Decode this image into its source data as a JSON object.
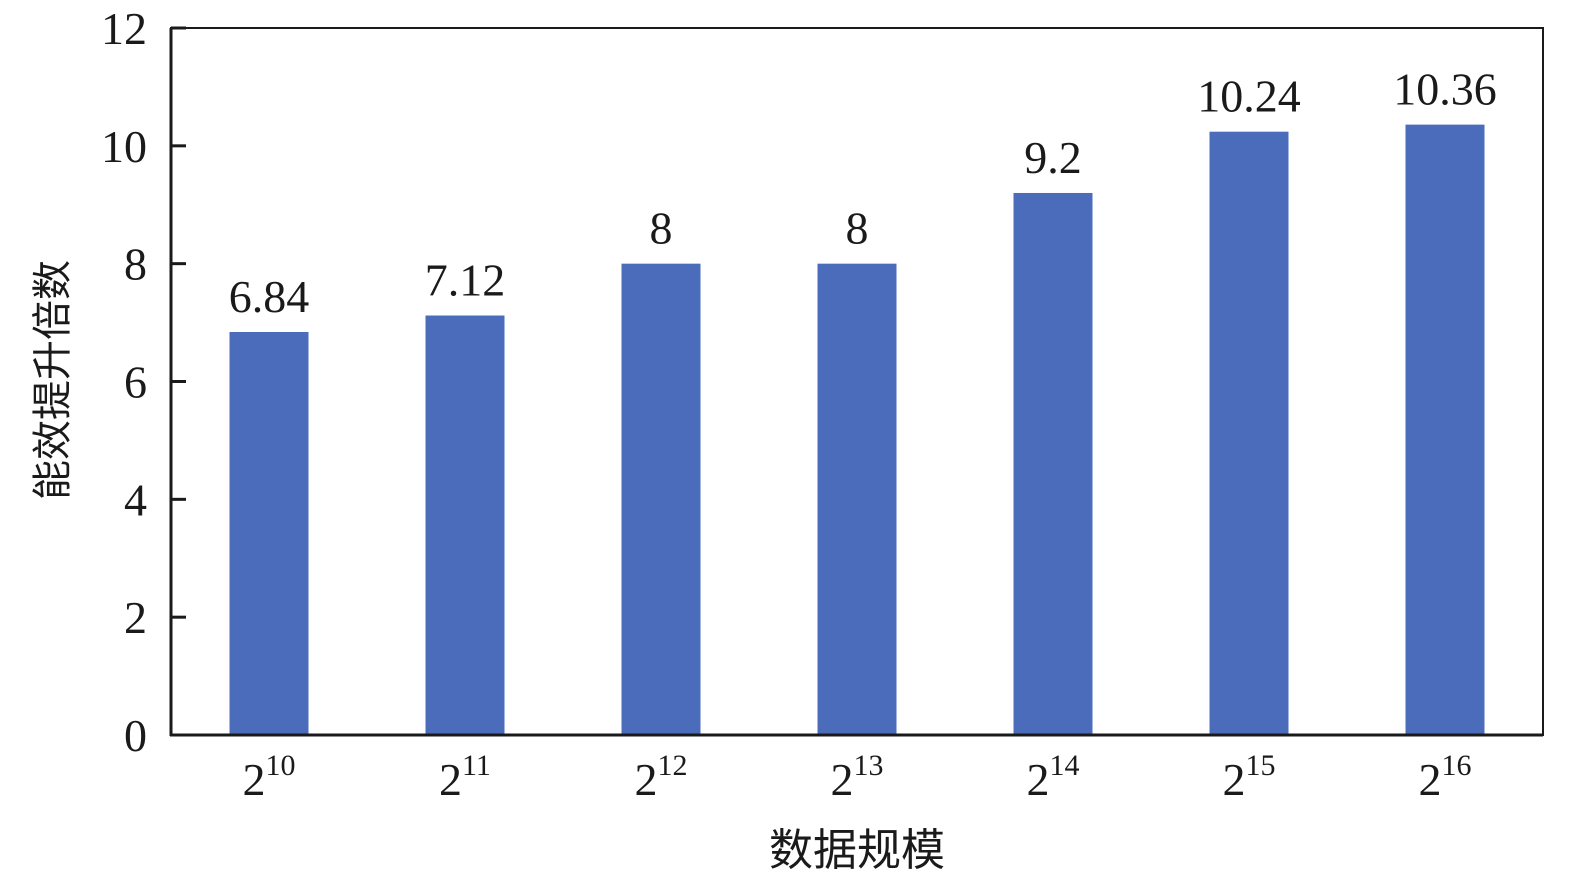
{
  "chart_data": {
    "type": "bar",
    "title": "",
    "xlabel": "数据规模",
    "ylabel": "能效提升倍数",
    "categories": [
      "2^10",
      "2^11",
      "2^12",
      "2^13",
      "2^14",
      "2^15",
      "2^16"
    ],
    "values": [
      6.84,
      7.12,
      8,
      8,
      9.2,
      10.24,
      10.36
    ],
    "data_labels": [
      "6.84",
      "7.12",
      "8",
      "8",
      "9.2",
      "10.24",
      "10.36"
    ],
    "ylim": [
      0,
      12
    ],
    "yticks": [
      0,
      2,
      4,
      6,
      8,
      10,
      12
    ],
    "grid": false,
    "bar_color": "#4a6cbb"
  }
}
